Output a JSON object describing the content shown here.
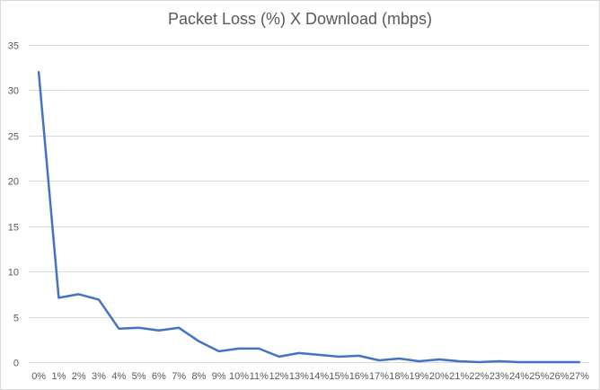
{
  "chart_data": {
    "type": "line",
    "title": "Packet Loss (%) X Download (mbps)",
    "xlabel": "",
    "ylabel": "",
    "categories": [
      "0%",
      "1%",
      "2%",
      "3%",
      "4%",
      "5%",
      "6%",
      "7%",
      "8%",
      "9%",
      "10%",
      "11%",
      "12%",
      "13%",
      "14%",
      "15%",
      "16%",
      "17%",
      "18%",
      "19%",
      "20%",
      "21%",
      "22%",
      "23%",
      "24%",
      "25%",
      "26%",
      "27%"
    ],
    "series": [
      {
        "values": [
          32,
          7.1,
          7.5,
          6.9,
          3.7,
          3.8,
          3.5,
          3.8,
          2.3,
          1.2,
          1.5,
          1.5,
          0.6,
          1.0,
          0.8,
          0.6,
          0.7,
          0.2,
          0.4,
          0.1,
          0.3,
          0.1,
          0.0,
          0.1,
          0.0,
          0.0,
          0.0,
          0.0
        ],
        "color": "#4472c4"
      }
    ],
    "ylim": [
      0,
      35
    ],
    "yticks": [
      0,
      5,
      10,
      15,
      20,
      25,
      30,
      35
    ],
    "grid": true,
    "legend": "none"
  }
}
